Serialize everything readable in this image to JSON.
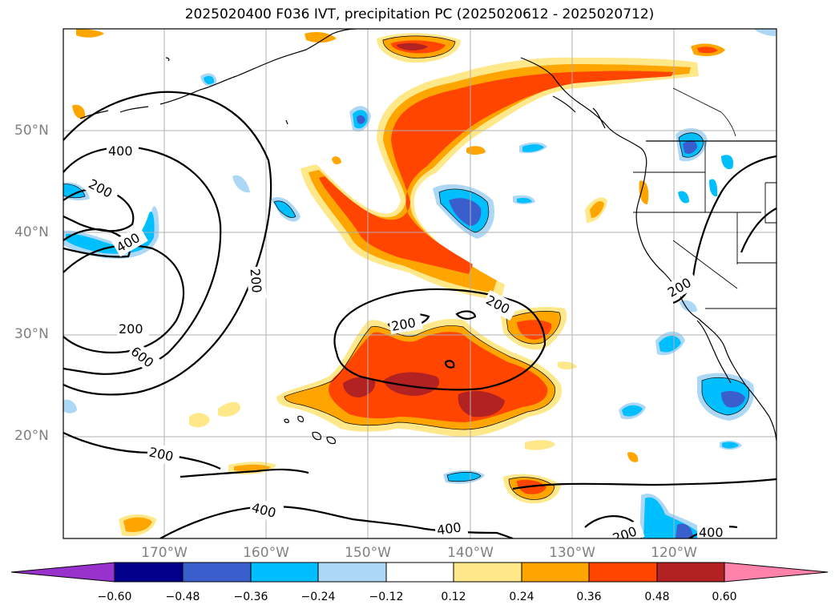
{
  "title": "2025020400 F036 IVT, precipitation PC (2025020612 - 2025020712)",
  "map": {
    "extent": {
      "lon": [
        -180,
        -110
      ],
      "lat": [
        10,
        60
      ]
    },
    "lat_labels": [
      "50°N",
      "40°N",
      "30°N",
      "20°N"
    ],
    "lon_labels": [
      "170°W",
      "160°W",
      "150°W",
      "140°W",
      "130°W",
      "120°W"
    ],
    "gridlines": true,
    "ivt_contour_levels": [
      200,
      400,
      600
    ],
    "contour_labels": [
      "400",
      "200",
      "400",
      "200",
      "200",
      "600",
      "200",
      "200",
      "200",
      "200",
      "400",
      "400",
      "400",
      "200"
    ]
  },
  "colorbar": {
    "ticks": [
      "−0.60",
      "−0.48",
      "−0.36",
      "−0.24",
      "−0.12",
      "0.12",
      "0.24",
      "0.36",
      "0.48",
      "0.60"
    ],
    "colors": [
      "#9932cc",
      "#00008b",
      "#3a5fcd",
      "#00bfff",
      "#add8f5",
      "#ffffff",
      "#ffe88a",
      "#ffa500",
      "#ff4500",
      "#b22222",
      "#ff82ab"
    ],
    "extend": "both"
  }
}
